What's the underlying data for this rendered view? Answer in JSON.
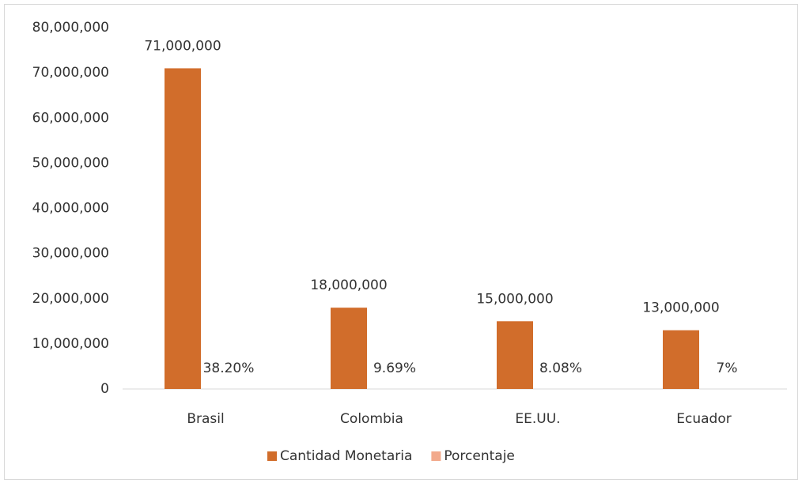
{
  "chart_data": {
    "type": "bar",
    "categories": [
      "Brasil",
      "Colombia",
      "EE.UU.",
      "Ecuador"
    ],
    "series": [
      {
        "name": "Cantidad Monetaria",
        "color": "#d16d2b",
        "values": [
          71000000,
          18000000,
          15000000,
          13000000
        ],
        "value_labels": [
          "71,000,000",
          "18,000,000",
          "15,000,000",
          "13,000,000"
        ]
      },
      {
        "name": "Porcentaje",
        "color": "#f2a98b",
        "values": [
          38.2,
          9.69,
          8.08,
          7
        ],
        "value_labels": [
          "38.20%",
          "9.69%",
          "8.08%",
          "7%"
        ]
      }
    ],
    "ylim": [
      0,
      80000000
    ],
    "yticks": [
      0,
      {
        "value": 10000000,
        "label": "10,000,000"
      },
      {
        "value": 20000000,
        "label": "20,000,000"
      },
      {
        "value": 30000000,
        "label": "30,000,000"
      },
      {
        "value": 40000000,
        "label": "40,000,000"
      },
      {
        "value": 50000000,
        "label": "50,000,000"
      },
      {
        "value": 60000000,
        "label": "60,000,000"
      },
      {
        "value": 70000000,
        "label": "70,000,000"
      },
      {
        "value": 80000000,
        "label": "80,000,000"
      }
    ],
    "grid": false,
    "legend": "bottom"
  }
}
